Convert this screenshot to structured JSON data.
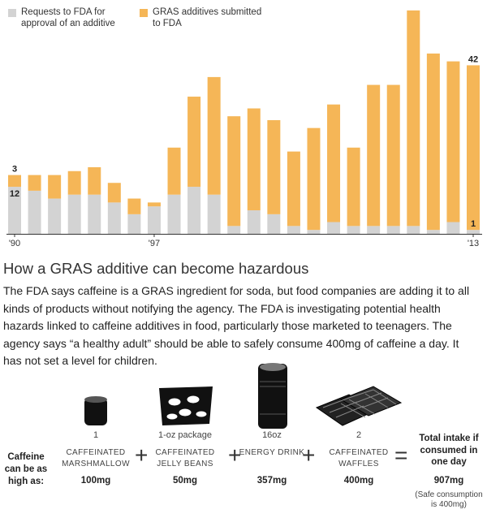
{
  "chart_data": {
    "type": "bar",
    "stacked": true,
    "categories": [
      "'90",
      null,
      null,
      null,
      null,
      null,
      null,
      "'97",
      null,
      null,
      null,
      null,
      null,
      null,
      null,
      null,
      null,
      null,
      null,
      null,
      null,
      null,
      null,
      "'13"
    ],
    "series": [
      {
        "name": "Requests to FDA for approval of an additive",
        "color": "#d3d3d3",
        "values": [
          12,
          11,
          9,
          10,
          10,
          8,
          5,
          7,
          10,
          12,
          10,
          2,
          6,
          5,
          2,
          1,
          3,
          2,
          2,
          2,
          2,
          1,
          3,
          1
        ]
      },
      {
        "name": "GRAS additives submitted to FDA",
        "color": "#f5b657",
        "values": [
          3,
          4,
          6,
          6,
          7,
          5,
          4,
          1,
          12,
          23,
          30,
          28,
          26,
          24,
          19,
          26,
          30,
          20,
          36,
          36,
          55,
          45,
          41,
          42
        ]
      }
    ],
    "ylim": [
      0,
      58
    ]
  },
  "article": {
    "heading": "How a GRAS additive can become hazardous",
    "body": "The FDA says caffeine is a GRAS ingredient for soda, but food companies are adding it to all kinds of products without notifying the agency. The FDA is investigating potential health hazards linked to caffeine additives in food, particularly those marketed to teenagers. The agency says “a healthy adult” should be able to safely consume 400mg of caffeine a day. It has not set a level for children."
  },
  "caffeine": {
    "label": "Caffeine can be as high as:",
    "items": [
      {
        "quantity": "1",
        "name": "CAFFEINATED MARSHMALLOW",
        "amount": "100mg"
      },
      {
        "quantity": "1-oz package",
        "name": "CAFFEINATED JELLY BEANS",
        "amount": "50mg"
      },
      {
        "quantity": "16oz",
        "name": "ENERGY DRINK",
        "amount": "357mg"
      },
      {
        "quantity": "2",
        "name": "CAFFEINATED WAFFLES",
        "amount": "400mg"
      }
    ],
    "total": {
      "label": "Total intake if consumed in one day",
      "amount": "907mg",
      "note": "(Safe consumption is 400mg)"
    }
  }
}
